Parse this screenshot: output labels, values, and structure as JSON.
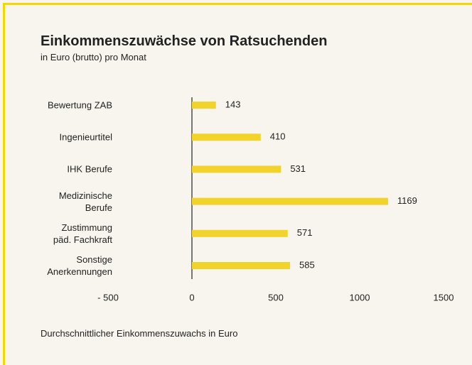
{
  "chart_data": {
    "type": "bar",
    "orientation": "horizontal",
    "title": "Einkommenszuwächse von Ratsuchenden",
    "subtitle": "in Euro (brutto) pro Monat",
    "xlabel": "Durchschnittlicher Einkommenszuwachs in Euro",
    "categories": [
      "Bewertung ZAB",
      "Ingenieurtitel",
      "IHK Berufe",
      "Medizinische\nBerufe",
      "Zustimmung\npäd. Fachkraft",
      "Sonstige\nAnerkennungen"
    ],
    "values": [
      143,
      410,
      531,
      1169,
      571,
      585
    ],
    "color": "#f2d32c",
    "xlim": [
      -500,
      1500
    ],
    "xticks": [
      {
        "value": -500,
        "label": "- 500"
      },
      0,
      500,
      1000,
      1500
    ]
  }
}
